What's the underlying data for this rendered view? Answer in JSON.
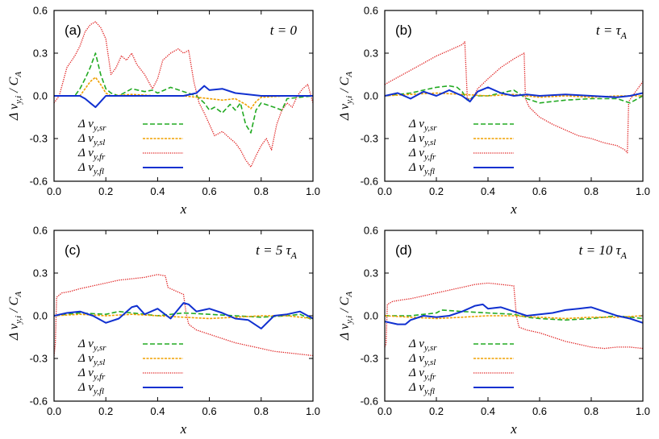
{
  "figure": {
    "xlabel": "x",
    "ylabel": "Δ v_y,i / C_A",
    "ylabel_parts": {
      "delta": "Δ v",
      "sub": "y,i",
      "rest": " / C",
      "sub2": "A"
    }
  },
  "colors": {
    "sr": "#22aa22",
    "sl": "#f0a000",
    "fr": "#e02020",
    "fl": "#1030d0"
  },
  "legend": [
    {
      "key": "sr",
      "label": "Δ v",
      "sub": "y,sr",
      "style": "dashed"
    },
    {
      "key": "sl",
      "label": "Δ v",
      "sub": "y,sl",
      "style": "dotted-dense"
    },
    {
      "key": "fr",
      "label": "Δ v",
      "sub": "y,fr",
      "style": "dotted"
    },
    {
      "key": "fl",
      "label": "Δ v",
      "sub": "y,fl",
      "style": "solid"
    }
  ],
  "chart_data": [
    {
      "type": "line",
      "panel": "(a)",
      "time_label": "t = 0",
      "xlim": [
        0,
        1
      ],
      "ylim": [
        -0.6,
        0.6
      ],
      "xticks": [
        "0.0",
        "0.2",
        "0.4",
        "0.6",
        "0.8",
        "1.0"
      ],
      "yticks": [
        "-0.6",
        "-0.3",
        "0.0",
        "0.3",
        "0.6"
      ],
      "series": [
        {
          "key": "fr",
          "x": [
            0.0,
            0.02,
            0.05,
            0.08,
            0.1,
            0.12,
            0.14,
            0.16,
            0.18,
            0.2,
            0.22,
            0.24,
            0.26,
            0.28,
            0.3,
            0.32,
            0.35,
            0.38,
            0.4,
            0.42,
            0.45,
            0.48,
            0.5,
            0.52,
            0.54,
            0.56,
            0.58,
            0.6,
            0.62,
            0.65,
            0.68,
            0.7,
            0.72,
            0.74,
            0.76,
            0.78,
            0.8,
            0.82,
            0.84,
            0.86,
            0.88,
            0.9,
            0.92,
            0.94,
            0.96,
            0.98,
            1.0
          ],
          "y": [
            -0.05,
            0.0,
            0.2,
            0.28,
            0.35,
            0.45,
            0.5,
            0.52,
            0.48,
            0.4,
            0.15,
            0.2,
            0.28,
            0.25,
            0.3,
            0.22,
            0.15,
            0.05,
            0.12,
            0.25,
            0.3,
            0.33,
            0.3,
            0.32,
            0.1,
            -0.05,
            -0.12,
            -0.2,
            -0.28,
            -0.25,
            -0.3,
            -0.33,
            -0.38,
            -0.45,
            -0.5,
            -0.42,
            -0.35,
            -0.3,
            -0.38,
            -0.2,
            -0.1,
            -0.05,
            -0.08,
            0.0,
            0.05,
            0.08,
            -0.05
          ]
        },
        {
          "key": "sr",
          "x": [
            0.0,
            0.08,
            0.1,
            0.12,
            0.14,
            0.16,
            0.18,
            0.2,
            0.22,
            0.25,
            0.3,
            0.35,
            0.38,
            0.4,
            0.45,
            0.5,
            0.55,
            0.58,
            0.6,
            0.62,
            0.65,
            0.68,
            0.7,
            0.72,
            0.74,
            0.76,
            0.78,
            0.8,
            0.85,
            0.88,
            0.9,
            1.0
          ],
          "y": [
            0.0,
            0.0,
            0.05,
            0.12,
            0.2,
            0.3,
            0.15,
            0.05,
            0.02,
            0.0,
            0.05,
            0.03,
            0.04,
            0.02,
            0.06,
            0.03,
            0.0,
            -0.05,
            -0.1,
            -0.08,
            -0.12,
            -0.06,
            -0.1,
            -0.05,
            -0.2,
            -0.26,
            -0.1,
            -0.05,
            -0.08,
            -0.1,
            -0.02,
            0.0
          ]
        },
        {
          "key": "sl",
          "x": [
            0.0,
            0.1,
            0.12,
            0.14,
            0.16,
            0.18,
            0.2,
            0.22,
            0.3,
            0.4,
            0.5,
            0.6,
            0.65,
            0.7,
            0.74,
            0.76,
            0.78,
            0.8,
            0.9,
            1.0
          ],
          "y": [
            0.0,
            0.0,
            0.05,
            0.1,
            0.13,
            0.08,
            0.02,
            0.0,
            0.01,
            0.0,
            0.0,
            -0.02,
            -0.03,
            -0.02,
            -0.06,
            -0.09,
            -0.04,
            -0.01,
            0.0,
            0.0
          ]
        },
        {
          "key": "fl",
          "x": [
            0.0,
            0.1,
            0.12,
            0.14,
            0.16,
            0.18,
            0.2,
            0.25,
            0.4,
            0.5,
            0.55,
            0.58,
            0.6,
            0.65,
            0.7,
            0.75,
            0.8,
            0.9,
            1.0
          ],
          "y": [
            0.0,
            0.0,
            -0.02,
            -0.05,
            -0.08,
            -0.04,
            0.0,
            0.0,
            0.0,
            0.0,
            0.02,
            0.07,
            0.04,
            0.05,
            0.02,
            0.01,
            0.0,
            0.0,
            0.0
          ]
        }
      ]
    },
    {
      "type": "line",
      "panel": "(b)",
      "time_label": "t = τ",
      "time_sub": "A",
      "xlim": [
        0,
        1
      ],
      "ylim": [
        -0.6,
        0.6
      ],
      "xticks": [
        "0.0",
        "0.2",
        "0.4",
        "0.6",
        "0.8",
        "1.0"
      ],
      "yticks": [
        "-0.6",
        "-0.3",
        "0.0",
        "0.3",
        "0.6"
      ],
      "series": [
        {
          "key": "fr",
          "x": [
            0.0,
            0.02,
            0.05,
            0.1,
            0.15,
            0.2,
            0.25,
            0.3,
            0.31,
            0.32,
            0.34,
            0.36,
            0.4,
            0.45,
            0.5,
            0.54,
            0.545,
            0.56,
            0.6,
            0.65,
            0.7,
            0.75,
            0.8,
            0.85,
            0.9,
            0.93,
            0.94,
            0.945,
            0.96,
            0.98,
            1.0
          ],
          "y": [
            0.08,
            0.1,
            0.13,
            0.18,
            0.23,
            0.28,
            0.32,
            0.36,
            0.38,
            -0.02,
            -0.02,
            0.05,
            0.12,
            0.2,
            0.26,
            0.3,
            -0.02,
            -0.08,
            -0.15,
            -0.2,
            -0.24,
            -0.28,
            -0.3,
            -0.33,
            -0.35,
            -0.38,
            -0.4,
            -0.04,
            0.0,
            0.05,
            0.1
          ]
        },
        {
          "key": "sr",
          "x": [
            0.0,
            0.1,
            0.15,
            0.2,
            0.25,
            0.28,
            0.3,
            0.32,
            0.35,
            0.4,
            0.45,
            0.5,
            0.55,
            0.6,
            0.7,
            0.8,
            0.9,
            0.95,
            1.0
          ],
          "y": [
            0.0,
            0.02,
            0.04,
            0.06,
            0.07,
            0.06,
            0.03,
            -0.03,
            0.0,
            0.0,
            0.02,
            0.04,
            -0.02,
            -0.05,
            -0.03,
            -0.02,
            -0.02,
            -0.05,
            0.0
          ]
        },
        {
          "key": "sl",
          "x": [
            0.0,
            0.1,
            0.2,
            0.3,
            0.4,
            0.5,
            0.6,
            0.7,
            0.8,
            0.9,
            1.0
          ],
          "y": [
            0.0,
            0.01,
            0.02,
            0.01,
            0.0,
            0.01,
            -0.01,
            0.0,
            -0.01,
            0.0,
            0.0
          ]
        },
        {
          "key": "fl",
          "x": [
            0.0,
            0.05,
            0.1,
            0.15,
            0.2,
            0.25,
            0.3,
            0.33,
            0.36,
            0.4,
            0.45,
            0.5,
            0.55,
            0.6,
            0.7,
            0.8,
            0.9,
            0.95,
            1.0
          ],
          "y": [
            0.0,
            0.02,
            -0.02,
            0.03,
            0.0,
            0.04,
            0.0,
            -0.04,
            0.03,
            0.06,
            0.02,
            0.0,
            0.01,
            0.0,
            0.01,
            0.0,
            -0.01,
            0.0,
            0.02
          ]
        }
      ]
    },
    {
      "type": "line",
      "panel": "(c)",
      "time_label": "t = 5 τ",
      "time_sub": "A",
      "xlim": [
        0,
        1
      ],
      "ylim": [
        -0.6,
        0.6
      ],
      "xticks": [
        "0.0",
        "0.2",
        "0.4",
        "0.6",
        "0.8",
        "1.0"
      ],
      "yticks": [
        "-0.6",
        "-0.3",
        "0.0",
        "0.3",
        "0.6"
      ],
      "series": [
        {
          "key": "fr",
          "x": [
            0.0,
            0.005,
            0.01,
            0.03,
            0.06,
            0.1,
            0.15,
            0.2,
            0.25,
            0.3,
            0.35,
            0.4,
            0.43,
            0.44,
            0.45,
            0.5,
            0.51,
            0.52,
            0.55,
            0.6,
            0.65,
            0.7,
            0.75,
            0.8,
            0.85,
            0.9,
            0.95,
            1.0
          ],
          "y": [
            -0.28,
            -0.2,
            0.13,
            0.16,
            0.17,
            0.19,
            0.21,
            0.23,
            0.25,
            0.26,
            0.27,
            0.29,
            0.28,
            0.2,
            0.19,
            0.15,
            0.02,
            -0.06,
            -0.1,
            -0.13,
            -0.16,
            -0.19,
            -0.21,
            -0.23,
            -0.25,
            -0.26,
            -0.27,
            -0.28
          ]
        },
        {
          "key": "sr",
          "x": [
            0.0,
            0.1,
            0.2,
            0.25,
            0.3,
            0.35,
            0.4,
            0.5,
            0.6,
            0.7,
            0.8,
            0.9,
            0.95,
            1.0
          ],
          "y": [
            0.0,
            0.02,
            0.01,
            0.03,
            0.02,
            0.01,
            0.0,
            0.02,
            0.01,
            0.0,
            -0.01,
            0.0,
            0.01,
            -0.03
          ]
        },
        {
          "key": "sl",
          "x": [
            0.0,
            0.1,
            0.2,
            0.3,
            0.4,
            0.5,
            0.6,
            0.7,
            0.8,
            0.9,
            1.0
          ],
          "y": [
            0.0,
            0.01,
            0.0,
            0.01,
            0.0,
            -0.01,
            -0.02,
            -0.01,
            0.0,
            0.0,
            -0.02
          ]
        },
        {
          "key": "fl",
          "x": [
            0.0,
            0.05,
            0.1,
            0.15,
            0.2,
            0.25,
            0.3,
            0.32,
            0.35,
            0.4,
            0.45,
            0.5,
            0.52,
            0.55,
            0.6,
            0.65,
            0.7,
            0.75,
            0.8,
            0.85,
            0.9,
            0.95,
            1.0
          ],
          "y": [
            0.0,
            0.02,
            0.03,
            0.0,
            -0.05,
            -0.02,
            0.06,
            0.07,
            0.01,
            0.05,
            -0.02,
            0.09,
            0.08,
            0.03,
            0.05,
            0.02,
            -0.02,
            -0.03,
            -0.09,
            0.0,
            0.01,
            0.03,
            -0.02
          ]
        }
      ]
    },
    {
      "type": "line",
      "panel": "(d)",
      "time_label": "t = 10 τ",
      "time_sub": "A",
      "xlim": [
        0,
        1
      ],
      "ylim": [
        -0.6,
        0.6
      ],
      "xticks": [
        "0.0",
        "0.2",
        "0.4",
        "0.6",
        "0.8",
        "1.0"
      ],
      "yticks": [
        "-0.6",
        "-0.3",
        "0.0",
        "0.3",
        "0.6"
      ],
      "series": [
        {
          "key": "fr",
          "x": [
            0.0,
            0.005,
            0.01,
            0.03,
            0.06,
            0.1,
            0.15,
            0.2,
            0.25,
            0.3,
            0.35,
            0.4,
            0.45,
            0.5,
            0.51,
            0.52,
            0.55,
            0.6,
            0.65,
            0.7,
            0.75,
            0.8,
            0.85,
            0.9,
            0.95,
            1.0
          ],
          "y": [
            -0.22,
            -0.2,
            0.08,
            0.1,
            0.11,
            0.12,
            0.14,
            0.16,
            0.18,
            0.2,
            0.22,
            0.23,
            0.22,
            0.21,
            0.0,
            -0.08,
            -0.1,
            -0.12,
            -0.15,
            -0.18,
            -0.2,
            -0.22,
            -0.23,
            -0.22,
            -0.22,
            -0.23
          ]
        },
        {
          "key": "sr",
          "x": [
            0.0,
            0.1,
            0.2,
            0.22,
            0.3,
            0.4,
            0.5,
            0.55,
            0.6,
            0.7,
            0.8,
            0.9,
            1.0
          ],
          "y": [
            0.0,
            0.0,
            0.02,
            0.04,
            0.03,
            0.02,
            0.01,
            -0.01,
            -0.02,
            -0.03,
            -0.02,
            0.0,
            -0.02
          ]
        },
        {
          "key": "sl",
          "x": [
            0.0,
            0.1,
            0.2,
            0.3,
            0.4,
            0.5,
            0.6,
            0.7,
            0.8,
            0.9,
            1.0
          ],
          "y": [
            0.0,
            -0.01,
            -0.02,
            -0.01,
            0.0,
            0.0,
            -0.01,
            -0.02,
            -0.01,
            -0.01,
            0.0
          ]
        },
        {
          "key": "fl",
          "x": [
            0.0,
            0.05,
            0.08,
            0.1,
            0.15,
            0.2,
            0.25,
            0.3,
            0.35,
            0.38,
            0.4,
            0.45,
            0.5,
            0.55,
            0.6,
            0.65,
            0.7,
            0.75,
            0.8,
            0.85,
            0.9,
            0.95,
            1.0
          ],
          "y": [
            -0.04,
            -0.06,
            -0.06,
            -0.03,
            0.0,
            -0.01,
            0.0,
            0.03,
            0.07,
            0.08,
            0.05,
            0.06,
            0.03,
            0.0,
            0.01,
            0.02,
            0.04,
            0.05,
            0.06,
            0.03,
            0.0,
            -0.02,
            -0.05
          ]
        }
      ]
    }
  ]
}
